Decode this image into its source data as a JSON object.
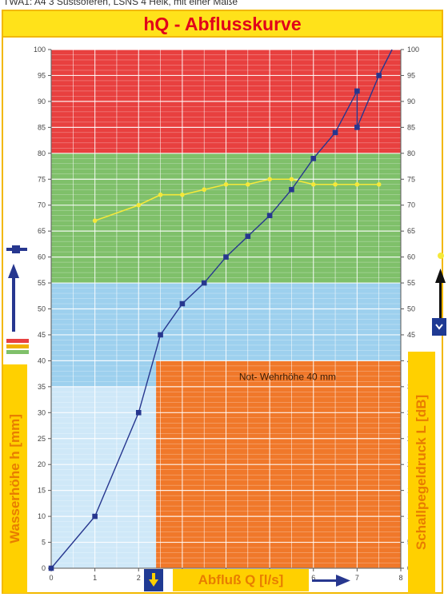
{
  "caption": "TWA1: A4 3 Süstsöferen, LSNS 4 Helk, mit einer Maße",
  "colors": {
    "title_text": "#e1001a",
    "title_bg": "#ffe21a",
    "zone_red": "#e8403f",
    "zone_green": "#7fc06a",
    "zone_blue": "#9dd0ee",
    "zone_lightblue": "#cfe8f8",
    "zone_orange": "#f0782a",
    "series_hq": "#27378f",
    "series_sound": "#f5e93a",
    "label_box": "#ffd000",
    "label_text": "#e87d00"
  },
  "chart_data": {
    "type": "line",
    "title": "hQ - Abflusskurve",
    "xlabel": "Abfluß Q [l/s]",
    "ylabel": "Wasserhöhe h [mm]",
    "y2label": "Schallpegeldruck L [dB]",
    "xlim": [
      0,
      8
    ],
    "ylim": [
      0,
      100
    ],
    "y2lim": [
      0,
      100
    ],
    "x_ticks": [
      "0",
      "1",
      "2",
      "3",
      "4",
      "5",
      "6",
      "7",
      "8"
    ],
    "y_ticks": [
      "0",
      "5",
      "10",
      "15",
      "20",
      "25",
      "30",
      "35",
      "40",
      "45",
      "50",
      "55",
      "60",
      "65",
      "70",
      "75",
      "80",
      "85",
      "90",
      "95",
      "100"
    ],
    "grid": true,
    "annotation": "Not- Wehrhöhe 40 mm",
    "zones": [
      {
        "color": "red",
        "y_from": 80,
        "y_to": 100,
        "x_from": 0,
        "x_to": 8
      },
      {
        "color": "green",
        "y_from": 55,
        "y_to": 80,
        "x_from": 0,
        "x_to": 8
      },
      {
        "color": "blue",
        "y_from": 40,
        "y_to": 55,
        "x_from": 0,
        "x_to": 8
      },
      {
        "color": "blue",
        "y_from": 35,
        "y_to": 40,
        "x_from": 0,
        "x_to": 2.4
      },
      {
        "color": "lightblue",
        "y_from": 0,
        "y_to": 35,
        "x_from": 0,
        "x_to": 2.4
      },
      {
        "color": "orange",
        "y_from": 0,
        "y_to": 40,
        "x_from": 2.4,
        "x_to": 8
      }
    ],
    "series": [
      {
        "x": [
          0,
          1,
          2,
          2.5,
          3,
          3.5,
          4,
          4.5,
          5,
          5.5,
          6,
          6.5,
          7,
          7,
          7.5,
          7.8
        ],
        "y": [
          0,
          10,
          30,
          45,
          51,
          55,
          60,
          64,
          68,
          73,
          79,
          84,
          92,
          85,
          95,
          100
        ],
        "y_axis": "left",
        "marker": "square"
      },
      {
        "x": [
          1,
          2,
          2.5,
          3,
          3.5,
          4,
          4.5,
          5,
          5.5,
          6,
          6.5,
          7,
          7.5
        ],
        "y": [
          67,
          70,
          72,
          72,
          73,
          74,
          74,
          75,
          75,
          74,
          74,
          74,
          74
        ],
        "y_axis": "right",
        "marker": "circle"
      }
    ]
  }
}
